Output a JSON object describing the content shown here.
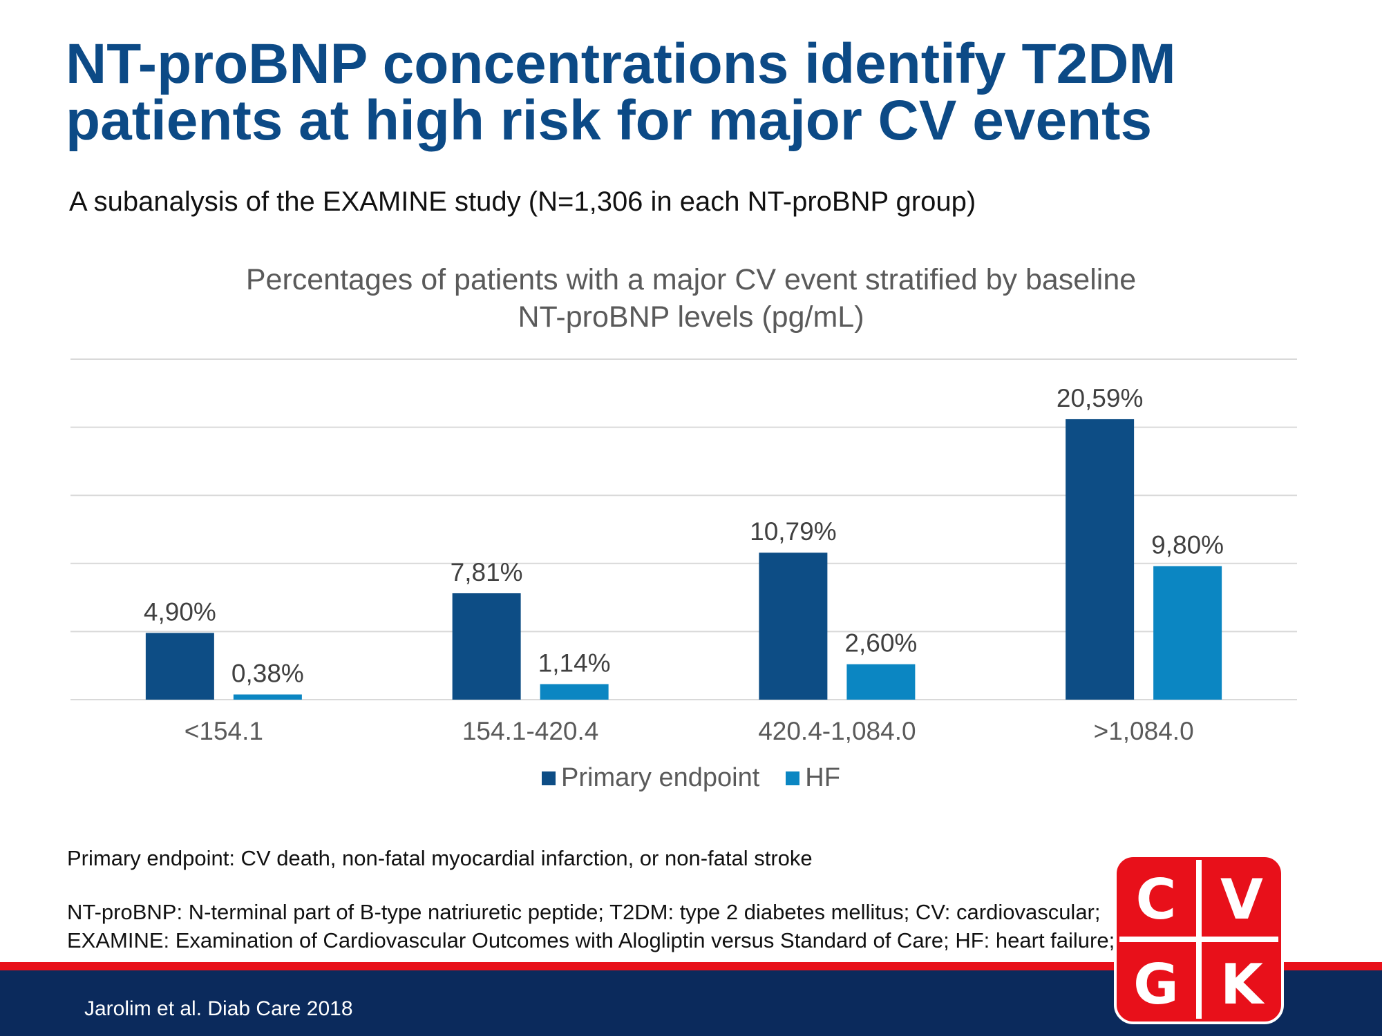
{
  "title": {
    "line1": "NT-proBNP concentrations identify T2DM",
    "line2": "patients at high risk for major CV events"
  },
  "subtitle": "A subanalysis of the EXAMINE study (N=1,306 in each NT-proBNP group)",
  "chart_data": {
    "type": "bar",
    "title_line1": "Percentages of patients with a major CV event stratified by baseline",
    "title_line2": "NT-proBNP levels (pg/mL)",
    "categories": [
      "<154.1",
      "154.1-420.4",
      "420.4-1,084.0",
      ">1,084.0"
    ],
    "series": [
      {
        "name": "Primary endpoint",
        "color": "#0d4d85",
        "values": [
          4.9,
          7.81,
          10.79,
          20.59
        ],
        "labels": [
          "4,90%",
          "7,81%",
          "10,79%",
          "20,59%"
        ]
      },
      {
        "name": "HF",
        "color": "#0b86c2",
        "values": [
          0.38,
          1.14,
          2.6,
          9.8
        ],
        "labels": [
          "0,38%",
          "1,14%",
          "2,60%",
          "9,80%"
        ]
      }
    ],
    "ylim": [
      0,
      25
    ],
    "gridlines": true,
    "legend_position": "bottom"
  },
  "footnotes": {
    "primary": "Primary endpoint: CV death, non-fatal myocardial infarction, or non-fatal stroke",
    "abbrev_line1": "NT-proBNP: N-terminal part of B-type natriuretic peptide; T2DM: type 2 diabetes mellitus; CV: cardiovascular;",
    "abbrev_line2": "EXAMINE: Examination of Cardiovascular Outcomes with Alogliptin versus Standard of Care; HF: heart failure;"
  },
  "citation": "Jarolim et al. Diab Care 2018",
  "logo": {
    "letters": [
      "C",
      "V",
      "G",
      "K"
    ],
    "color": "#e8101a"
  },
  "colors": {
    "title": "#0c4a86",
    "footer": "#0b2a5c",
    "accent_red": "#e8101a"
  }
}
